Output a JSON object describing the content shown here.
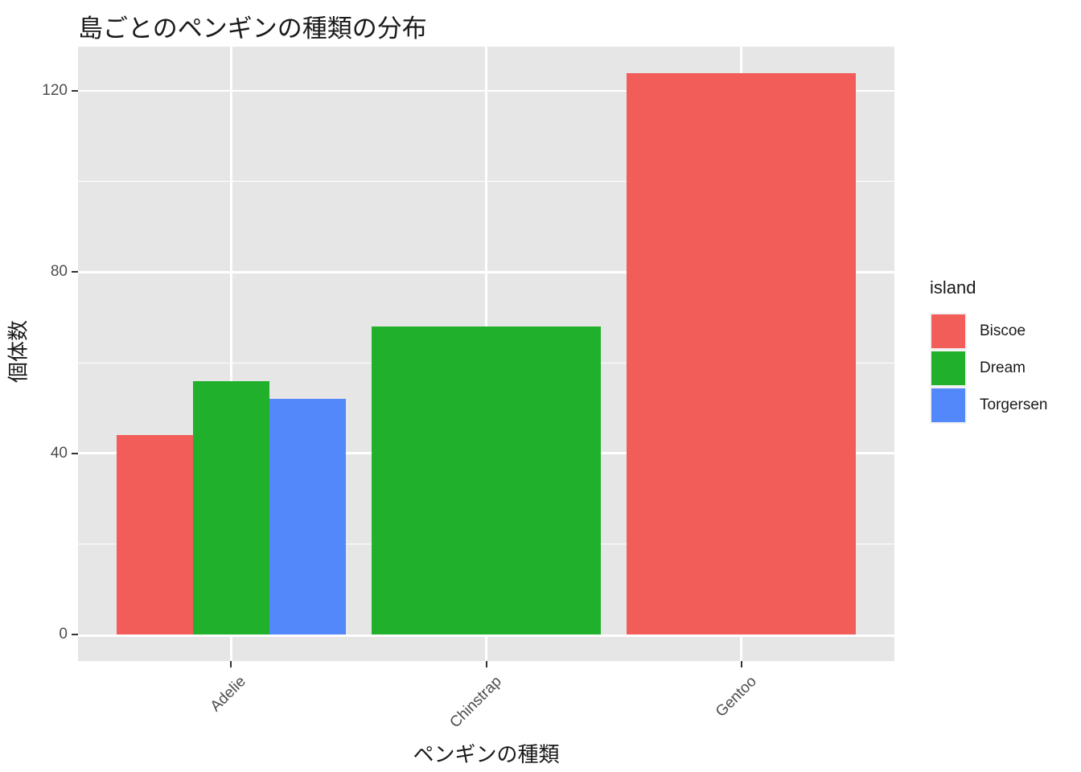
{
  "chart_data": {
    "type": "bar",
    "title": "島ごとのペンギンの種類の分布",
    "xlabel": "ペンギンの種類",
    "ylabel": "個体数",
    "legend_title": "island",
    "legend_position": "right",
    "grid": true,
    "bar_layout": "dodge",
    "categories": [
      "Adelie",
      "Chinstrap",
      "Gentoo"
    ],
    "series": [
      {
        "name": "Biscoe",
        "color": "#F25D5A",
        "values": [
          44,
          null,
          124
        ]
      },
      {
        "name": "Dream",
        "color": "#20B02B",
        "values": [
          56,
          68,
          null
        ]
      },
      {
        "name": "Torgersen",
        "color": "#5288FA",
        "values": [
          52,
          null,
          null
        ]
      }
    ],
    "y_major_ticks": [
      0,
      40,
      80,
      120
    ],
    "y_minor_ticks": [
      20,
      60,
      100
    ],
    "ylim": [
      -6.2,
      130.2
    ],
    "colors": {
      "panel_bg": "#E6E6E6",
      "grid": "#FFFFFF",
      "tick_mark": "#333333",
      "tick_label": "#4D4D4D",
      "text": "#1A1A1A",
      "legend_key_bg": "#F2F2F2",
      "background": "#FFFFFF"
    }
  }
}
